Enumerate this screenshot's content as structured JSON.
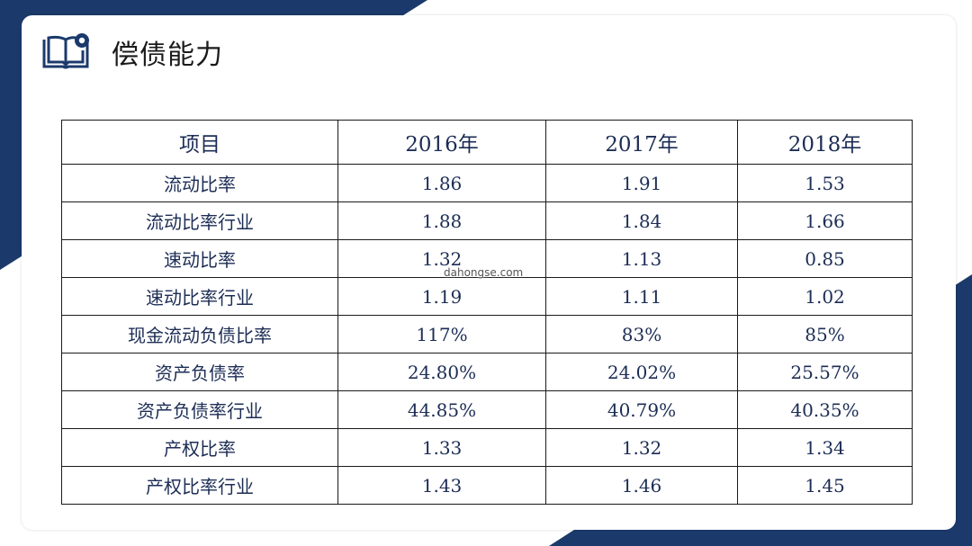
{
  "slide": {
    "title": "偿债能力",
    "icon": "book-icon",
    "colors": {
      "accent": "#1b3a6b",
      "text": "#1c2d55",
      "border": "#1a1a1a"
    }
  },
  "table": {
    "headers": [
      "项目",
      "2016年",
      "2017年",
      "2018年"
    ],
    "rows": [
      [
        "流动比率",
        "1.86",
        "1.91",
        "1.53"
      ],
      [
        "流动比率行业",
        "1.88",
        "1.84",
        "1.66"
      ],
      [
        "速动比率",
        "1.32",
        "1.13",
        "0.85"
      ],
      [
        "速动比率行业",
        "1.19",
        "1.11",
        "1.02"
      ],
      [
        "现金流动负债比率",
        "117%",
        "83%",
        "85%"
      ],
      [
        "资产负债率",
        "24.80%",
        "24.02%",
        "25.57%"
      ],
      [
        "资产负债率行业",
        "44.85%",
        "40.79%",
        "40.35%"
      ],
      [
        "产权比率",
        "1.33",
        "1.32",
        "1.34"
      ],
      [
        "产权比率行业",
        "1.43",
        "1.46",
        "1.45"
      ]
    ]
  },
  "watermark": "dahongse.com"
}
